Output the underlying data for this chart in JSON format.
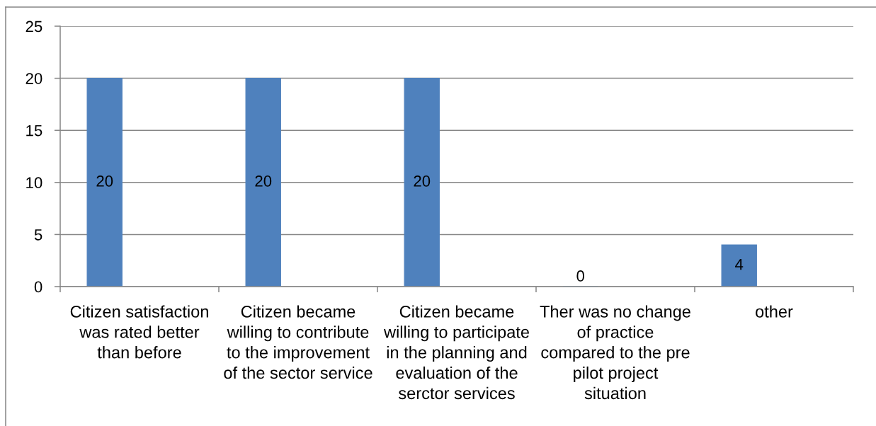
{
  "chart_data": {
    "type": "bar",
    "categories": [
      "Citizen satisfaction\nwas rated better\nthan before",
      "Citizen became\nwilling to contribute\nto the improvement\nof the sector service",
      "Citizen became\nwilling to participate\nin the planning and\nevaluation of the\nserctor services",
      "Ther was no change\nof practice\ncompared to the pre\npilot project\nsituation",
      "other"
    ],
    "values": [
      20,
      20,
      20,
      0,
      4
    ],
    "color": "#4f81bd",
    "ylim": [
      0,
      25
    ],
    "yticks": [
      0,
      5,
      10,
      15,
      20,
      25
    ],
    "grid": "y",
    "data_labels": true
  }
}
